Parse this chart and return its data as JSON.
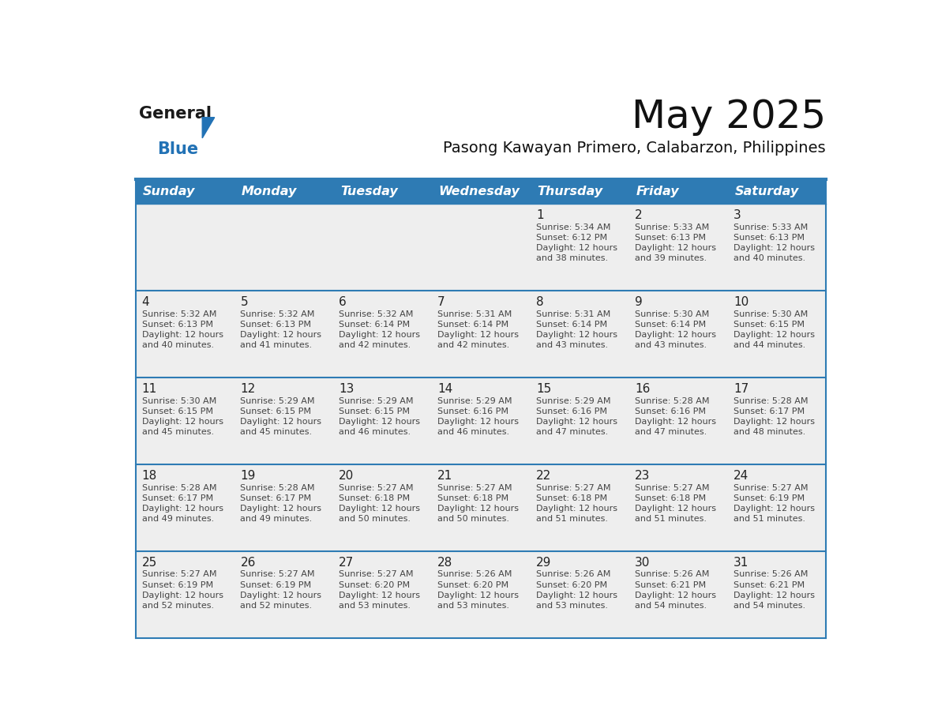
{
  "title": "May 2025",
  "subtitle": "Pasong Kawayan Primero, Calabarzon, Philippines",
  "header_bg": "#2E7BB4",
  "header_text_color": "#FFFFFF",
  "day_names": [
    "Sunday",
    "Monday",
    "Tuesday",
    "Wednesday",
    "Thursday",
    "Friday",
    "Saturday"
  ],
  "weeks": [
    [
      {
        "day": "",
        "info": ""
      },
      {
        "day": "",
        "info": ""
      },
      {
        "day": "",
        "info": ""
      },
      {
        "day": "",
        "info": ""
      },
      {
        "day": "1",
        "info": "Sunrise: 5:34 AM\nSunset: 6:12 PM\nDaylight: 12 hours\nand 38 minutes."
      },
      {
        "day": "2",
        "info": "Sunrise: 5:33 AM\nSunset: 6:13 PM\nDaylight: 12 hours\nand 39 minutes."
      },
      {
        "day": "3",
        "info": "Sunrise: 5:33 AM\nSunset: 6:13 PM\nDaylight: 12 hours\nand 40 minutes."
      }
    ],
    [
      {
        "day": "4",
        "info": "Sunrise: 5:32 AM\nSunset: 6:13 PM\nDaylight: 12 hours\nand 40 minutes."
      },
      {
        "day": "5",
        "info": "Sunrise: 5:32 AM\nSunset: 6:13 PM\nDaylight: 12 hours\nand 41 minutes."
      },
      {
        "day": "6",
        "info": "Sunrise: 5:32 AM\nSunset: 6:14 PM\nDaylight: 12 hours\nand 42 minutes."
      },
      {
        "day": "7",
        "info": "Sunrise: 5:31 AM\nSunset: 6:14 PM\nDaylight: 12 hours\nand 42 minutes."
      },
      {
        "day": "8",
        "info": "Sunrise: 5:31 AM\nSunset: 6:14 PM\nDaylight: 12 hours\nand 43 minutes."
      },
      {
        "day": "9",
        "info": "Sunrise: 5:30 AM\nSunset: 6:14 PM\nDaylight: 12 hours\nand 43 minutes."
      },
      {
        "day": "10",
        "info": "Sunrise: 5:30 AM\nSunset: 6:15 PM\nDaylight: 12 hours\nand 44 minutes."
      }
    ],
    [
      {
        "day": "11",
        "info": "Sunrise: 5:30 AM\nSunset: 6:15 PM\nDaylight: 12 hours\nand 45 minutes."
      },
      {
        "day": "12",
        "info": "Sunrise: 5:29 AM\nSunset: 6:15 PM\nDaylight: 12 hours\nand 45 minutes."
      },
      {
        "day": "13",
        "info": "Sunrise: 5:29 AM\nSunset: 6:15 PM\nDaylight: 12 hours\nand 46 minutes."
      },
      {
        "day": "14",
        "info": "Sunrise: 5:29 AM\nSunset: 6:16 PM\nDaylight: 12 hours\nand 46 minutes."
      },
      {
        "day": "15",
        "info": "Sunrise: 5:29 AM\nSunset: 6:16 PM\nDaylight: 12 hours\nand 47 minutes."
      },
      {
        "day": "16",
        "info": "Sunrise: 5:28 AM\nSunset: 6:16 PM\nDaylight: 12 hours\nand 47 minutes."
      },
      {
        "day": "17",
        "info": "Sunrise: 5:28 AM\nSunset: 6:17 PM\nDaylight: 12 hours\nand 48 minutes."
      }
    ],
    [
      {
        "day": "18",
        "info": "Sunrise: 5:28 AM\nSunset: 6:17 PM\nDaylight: 12 hours\nand 49 minutes."
      },
      {
        "day": "19",
        "info": "Sunrise: 5:28 AM\nSunset: 6:17 PM\nDaylight: 12 hours\nand 49 minutes."
      },
      {
        "day": "20",
        "info": "Sunrise: 5:27 AM\nSunset: 6:18 PM\nDaylight: 12 hours\nand 50 minutes."
      },
      {
        "day": "21",
        "info": "Sunrise: 5:27 AM\nSunset: 6:18 PM\nDaylight: 12 hours\nand 50 minutes."
      },
      {
        "day": "22",
        "info": "Sunrise: 5:27 AM\nSunset: 6:18 PM\nDaylight: 12 hours\nand 51 minutes."
      },
      {
        "day": "23",
        "info": "Sunrise: 5:27 AM\nSunset: 6:18 PM\nDaylight: 12 hours\nand 51 minutes."
      },
      {
        "day": "24",
        "info": "Sunrise: 5:27 AM\nSunset: 6:19 PM\nDaylight: 12 hours\nand 51 minutes."
      }
    ],
    [
      {
        "day": "25",
        "info": "Sunrise: 5:27 AM\nSunset: 6:19 PM\nDaylight: 12 hours\nand 52 minutes."
      },
      {
        "day": "26",
        "info": "Sunrise: 5:27 AM\nSunset: 6:19 PM\nDaylight: 12 hours\nand 52 minutes."
      },
      {
        "day": "27",
        "info": "Sunrise: 5:27 AM\nSunset: 6:20 PM\nDaylight: 12 hours\nand 53 minutes."
      },
      {
        "day": "28",
        "info": "Sunrise: 5:26 AM\nSunset: 6:20 PM\nDaylight: 12 hours\nand 53 minutes."
      },
      {
        "day": "29",
        "info": "Sunrise: 5:26 AM\nSunset: 6:20 PM\nDaylight: 12 hours\nand 53 minutes."
      },
      {
        "day": "30",
        "info": "Sunrise: 5:26 AM\nSunset: 6:21 PM\nDaylight: 12 hours\nand 54 minutes."
      },
      {
        "day": "31",
        "info": "Sunrise: 5:26 AM\nSunset: 6:21 PM\nDaylight: 12 hours\nand 54 minutes."
      }
    ]
  ],
  "cell_bg": "#EEEEEE",
  "cell_bg_white": "#FFFFFF",
  "divider_color": "#2E7BB4",
  "border_color": "#2E7BB4",
  "text_color_day": "#222222",
  "text_color_info": "#444444",
  "logo_text_general": "General",
  "logo_text_blue": "Blue",
  "logo_black": "#1a1a1a",
  "logo_triangle_color": "#2272B5",
  "logo_blue_color": "#2272B5",
  "title_fontsize": 36,
  "subtitle_fontsize": 14,
  "dayname_fontsize": 11.5,
  "daynum_fontsize": 11,
  "info_fontsize": 8.0
}
